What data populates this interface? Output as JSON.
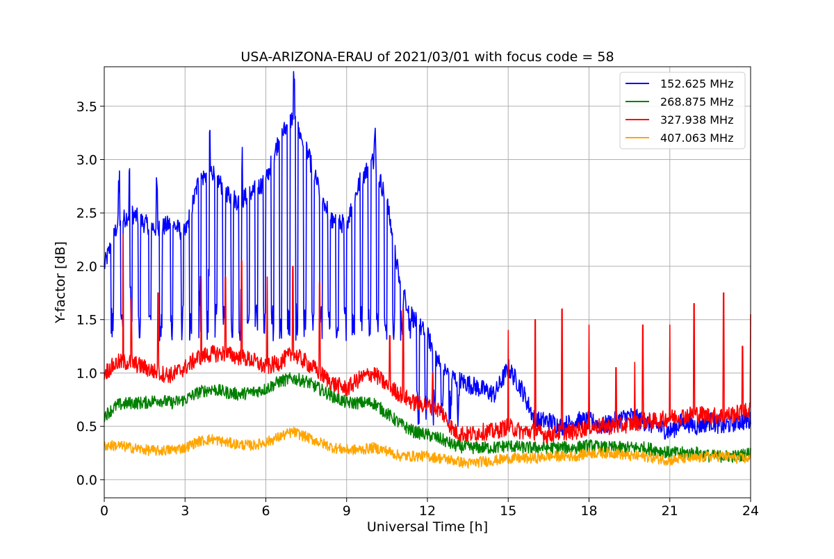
{
  "chart_data": {
    "type": "line",
    "title": "USA-ARIZONA-ERAU of 2021/03/01 with focus code = 58",
    "xlabel": "Universal Time [h]",
    "ylabel": "Y-factor [dB]",
    "xlim": [
      0,
      24
    ],
    "ylim": [
      -0.17,
      3.87
    ],
    "xticks": [
      0,
      3,
      6,
      9,
      12,
      15,
      18,
      21,
      24
    ],
    "yticks": [
      0.0,
      0.5,
      1.0,
      1.5,
      2.0,
      2.5,
      3.0,
      3.5
    ],
    "xtick_labels": [
      "0",
      "3",
      "6",
      "9",
      "12",
      "15",
      "18",
      "21",
      "24"
    ],
    "ytick_labels": [
      "0.0",
      "0.5",
      "1.0",
      "1.5",
      "2.0",
      "2.5",
      "3.0",
      "3.5"
    ],
    "grid": true,
    "legend_position": "top-right",
    "series": [
      {
        "name": "152.625 MHz",
        "color": "#0000ff",
        "x": [
          0,
          0.5,
          1,
          1.5,
          2,
          2.5,
          3,
          3.5,
          4,
          4.5,
          5,
          5.5,
          6,
          6.5,
          7,
          7.5,
          8,
          8.5,
          9,
          9.5,
          10,
          10.5,
          11,
          11.5,
          12,
          12.5,
          13,
          13.5,
          14,
          14.5,
          15,
          15.5,
          16,
          16.5,
          17,
          17.5,
          18,
          18.5,
          19,
          19.5,
          20,
          20.5,
          21,
          21.5,
          22,
          22.5,
          23,
          23.5,
          24
        ],
        "y": [
          2.0,
          2.4,
          2.5,
          2.4,
          2.35,
          2.4,
          2.3,
          2.8,
          2.9,
          2.7,
          2.6,
          2.7,
          2.8,
          3.2,
          3.4,
          3.1,
          2.7,
          2.4,
          2.4,
          2.8,
          3.0,
          2.6,
          1.8,
          1.5,
          1.35,
          1.05,
          0.95,
          0.9,
          0.85,
          0.8,
          1.05,
          0.85,
          0.55,
          0.55,
          0.5,
          0.55,
          0.55,
          0.5,
          0.55,
          0.6,
          0.55,
          0.5,
          0.45,
          0.55,
          0.5,
          0.55,
          0.5,
          0.55,
          0.55
        ],
        "spikes_down": [
          0.3,
          0.65,
          1.0,
          1.3,
          1.7,
          2.1,
          2.5,
          2.9,
          3.2,
          3.55,
          3.85,
          4.15,
          4.45,
          4.75,
          5.05,
          5.35,
          5.65,
          5.95,
          6.25,
          6.55,
          6.85,
          7.15,
          7.45,
          7.75,
          8.05,
          8.35,
          8.65,
          8.95,
          9.25,
          9.55,
          9.85,
          10.15,
          10.45,
          10.75,
          11.05,
          11.35,
          11.65,
          11.95,
          12.25,
          12.55,
          12.85,
          13.15
        ],
        "spikes_up": [
          0.55,
          0.95,
          1.95,
          3.55,
          3.9,
          5.1,
          7.05,
          10.05
        ]
      },
      {
        "name": "268.875 MHz",
        "color": "#008000",
        "x": [
          0,
          0.5,
          1,
          1.5,
          2,
          2.5,
          3,
          3.5,
          4,
          4.5,
          5,
          5.5,
          6,
          6.5,
          7,
          7.5,
          8,
          8.5,
          9,
          9.5,
          10,
          10.5,
          11,
          11.5,
          12,
          12.5,
          13,
          13.5,
          14,
          14.5,
          15,
          15.5,
          16,
          16.5,
          17,
          17.5,
          18,
          18.5,
          19,
          19.5,
          20,
          20.5,
          21,
          21.5,
          22,
          22.5,
          23,
          23.5,
          24
        ],
        "y": [
          0.6,
          0.7,
          0.72,
          0.72,
          0.75,
          0.72,
          0.75,
          0.82,
          0.85,
          0.82,
          0.8,
          0.82,
          0.85,
          0.92,
          0.95,
          0.92,
          0.85,
          0.78,
          0.72,
          0.72,
          0.72,
          0.62,
          0.52,
          0.45,
          0.42,
          0.38,
          0.32,
          0.3,
          0.3,
          0.3,
          0.32,
          0.3,
          0.3,
          0.3,
          0.3,
          0.3,
          0.32,
          0.3,
          0.3,
          0.3,
          0.3,
          0.28,
          0.25,
          0.25,
          0.25,
          0.22,
          0.22,
          0.22,
          0.25
        ]
      },
      {
        "name": "327.938 MHz",
        "color": "#ff0000",
        "x": [
          0,
          0.5,
          1,
          1.5,
          2,
          2.5,
          3,
          3.5,
          4,
          4.5,
          5,
          5.5,
          6,
          6.5,
          7,
          7.5,
          8,
          8.5,
          9,
          9.5,
          10,
          10.5,
          11,
          11.5,
          12,
          12.5,
          13,
          13.5,
          14,
          14.5,
          15,
          15.5,
          16,
          16.5,
          17,
          17.5,
          18,
          18.5,
          19,
          19.5,
          20,
          20.5,
          21,
          21.5,
          22,
          22.5,
          23,
          23.5,
          24
        ],
        "y": [
          1.0,
          1.1,
          1.1,
          1.05,
          1.0,
          0.98,
          1.05,
          1.15,
          1.18,
          1.18,
          1.15,
          1.12,
          1.05,
          1.1,
          1.18,
          1.1,
          1.0,
          0.9,
          0.85,
          0.95,
          1.0,
          0.88,
          0.8,
          0.72,
          0.7,
          0.65,
          0.45,
          0.42,
          0.45,
          0.45,
          0.5,
          0.45,
          0.45,
          0.42,
          0.45,
          0.45,
          0.5,
          0.5,
          0.5,
          0.52,
          0.55,
          0.55,
          0.58,
          0.6,
          0.62,
          0.6,
          0.6,
          0.62,
          0.65
        ],
        "spikes_up": [
          [
            0.7,
            2.3
          ],
          [
            1.0,
            1.7
          ],
          [
            2.0,
            1.75
          ],
          [
            3.6,
            1.9
          ],
          [
            4.5,
            1.9
          ],
          [
            5.1,
            2.05
          ],
          [
            6.05,
            1.9
          ],
          [
            7.0,
            2.0
          ],
          [
            8.0,
            1.85
          ],
          [
            10.6,
            1.35
          ],
          [
            11.1,
            1.6
          ],
          [
            12.2,
            1.0
          ],
          [
            15.0,
            1.4
          ],
          [
            16.0,
            1.5
          ],
          [
            17.0,
            1.6
          ],
          [
            18.0,
            1.45
          ],
          [
            19.0,
            1.05
          ],
          [
            19.7,
            1.1
          ],
          [
            20.0,
            1.45
          ],
          [
            21.0,
            1.45
          ],
          [
            21.9,
            1.65
          ],
          [
            23.0,
            1.75
          ],
          [
            23.7,
            1.25
          ],
          [
            24.0,
            1.55
          ]
        ]
      },
      {
        "name": "407.063 MHz",
        "color": "#ffa500",
        "x": [
          0,
          0.5,
          1,
          1.5,
          2,
          2.5,
          3,
          3.5,
          4,
          4.5,
          5,
          5.5,
          6,
          6.5,
          7,
          7.5,
          8,
          8.5,
          9,
          9.5,
          10,
          10.5,
          11,
          11.5,
          12,
          12.5,
          13,
          13.5,
          14,
          14.5,
          15,
          15.5,
          16,
          16.5,
          17,
          17.5,
          18,
          18.5,
          19,
          19.5,
          20,
          20.5,
          21,
          21.5,
          22,
          22.5,
          23,
          23.5,
          24
        ],
        "y": [
          0.32,
          0.32,
          0.3,
          0.28,
          0.27,
          0.28,
          0.3,
          0.36,
          0.38,
          0.35,
          0.33,
          0.32,
          0.35,
          0.4,
          0.45,
          0.4,
          0.35,
          0.3,
          0.28,
          0.28,
          0.3,
          0.27,
          0.22,
          0.22,
          0.22,
          0.2,
          0.18,
          0.15,
          0.17,
          0.18,
          0.2,
          0.2,
          0.2,
          0.22,
          0.22,
          0.22,
          0.25,
          0.25,
          0.25,
          0.22,
          0.22,
          0.2,
          0.18,
          0.2,
          0.2,
          0.22,
          0.22,
          0.2,
          0.2
        ]
      }
    ]
  }
}
